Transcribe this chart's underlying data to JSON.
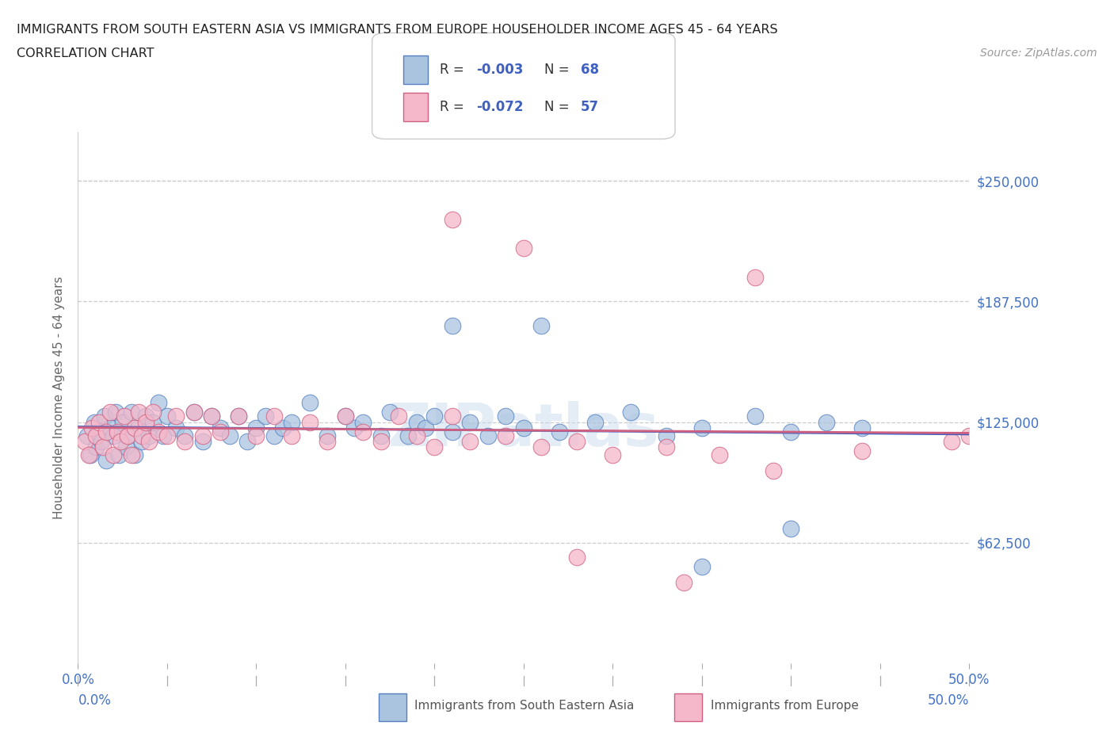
{
  "title_line1": "IMMIGRANTS FROM SOUTH EASTERN ASIA VS IMMIGRANTS FROM EUROPE HOUSEHOLDER INCOME AGES 45 - 64 YEARS",
  "title_line2": "CORRELATION CHART",
  "source_text": "Source: ZipAtlas.com",
  "ylabel": "Householder Income Ages 45 - 64 years",
  "xlim": [
    0.0,
    0.5
  ],
  "ylim": [
    0,
    275000
  ],
  "ytick_vals": [
    62500,
    125000,
    187500,
    250000
  ],
  "ytick_labels": [
    "$62,500",
    "$125,000",
    "$187,500",
    "$250,000"
  ],
  "xtick_vals": [
    0.0,
    0.05,
    0.1,
    0.15,
    0.2,
    0.25,
    0.3,
    0.35,
    0.4,
    0.45,
    0.5
  ],
  "blue_color": "#aac4e0",
  "pink_color": "#f5b8ca",
  "blue_edge_color": "#5580c0",
  "pink_edge_color": "#d06080",
  "blue_line_color": "#4060c0",
  "pink_line_color": "#d06080",
  "legend_R_blue": "-0.003",
  "legend_N_blue": "68",
  "legend_R_pink": "-0.072",
  "legend_N_pink": "57",
  "blue_x": [
    0.005,
    0.007,
    0.009,
    0.01,
    0.011,
    0.013,
    0.015,
    0.016,
    0.018,
    0.02,
    0.021,
    0.023,
    0.025,
    0.027,
    0.028,
    0.03,
    0.032,
    0.034,
    0.036,
    0.038,
    0.04,
    0.042,
    0.045,
    0.048,
    0.05,
    0.055,
    0.06,
    0.065,
    0.07,
    0.075,
    0.08,
    0.085,
    0.09,
    0.095,
    0.1,
    0.105,
    0.11,
    0.115,
    0.12,
    0.13,
    0.14,
    0.15,
    0.155,
    0.16,
    0.17,
    0.175,
    0.185,
    0.19,
    0.195,
    0.2,
    0.21,
    0.22,
    0.23,
    0.24,
    0.25,
    0.27,
    0.29,
    0.31,
    0.33,
    0.35,
    0.38,
    0.4,
    0.42,
    0.44,
    0.21,
    0.26,
    0.35,
    0.4
  ],
  "blue_y": [
    118000,
    108000,
    125000,
    112000,
    120000,
    115000,
    128000,
    105000,
    122000,
    118000,
    130000,
    108000,
    125000,
    112000,
    118000,
    130000,
    108000,
    122000,
    115000,
    128000,
    118000,
    125000,
    135000,
    118000,
    128000,
    122000,
    118000,
    130000,
    115000,
    128000,
    122000,
    118000,
    128000,
    115000,
    122000,
    128000,
    118000,
    122000,
    125000,
    135000,
    118000,
    128000,
    122000,
    125000,
    118000,
    130000,
    118000,
    125000,
    122000,
    128000,
    120000,
    125000,
    118000,
    128000,
    122000,
    120000,
    125000,
    130000,
    118000,
    122000,
    128000,
    120000,
    125000,
    122000,
    175000,
    175000,
    50000,
    70000
  ],
  "pink_x": [
    0.004,
    0.006,
    0.008,
    0.01,
    0.012,
    0.014,
    0.016,
    0.018,
    0.02,
    0.022,
    0.024,
    0.026,
    0.028,
    0.03,
    0.032,
    0.034,
    0.036,
    0.038,
    0.04,
    0.042,
    0.045,
    0.05,
    0.055,
    0.06,
    0.065,
    0.07,
    0.075,
    0.08,
    0.09,
    0.1,
    0.11,
    0.12,
    0.13,
    0.14,
    0.15,
    0.16,
    0.17,
    0.18,
    0.19,
    0.2,
    0.21,
    0.22,
    0.24,
    0.26,
    0.28,
    0.3,
    0.33,
    0.36,
    0.39,
    0.44,
    0.21,
    0.25,
    0.28,
    0.34,
    0.38,
    0.49,
    0.5
  ],
  "pink_y": [
    115000,
    108000,
    122000,
    118000,
    125000,
    112000,
    120000,
    130000,
    108000,
    120000,
    115000,
    128000,
    118000,
    108000,
    122000,
    130000,
    118000,
    125000,
    115000,
    130000,
    120000,
    118000,
    128000,
    115000,
    130000,
    118000,
    128000,
    120000,
    128000,
    118000,
    128000,
    118000,
    125000,
    115000,
    128000,
    120000,
    115000,
    128000,
    118000,
    112000,
    128000,
    115000,
    118000,
    112000,
    115000,
    108000,
    112000,
    108000,
    100000,
    110000,
    230000,
    215000,
    55000,
    42000,
    200000,
    115000,
    118000
  ]
}
